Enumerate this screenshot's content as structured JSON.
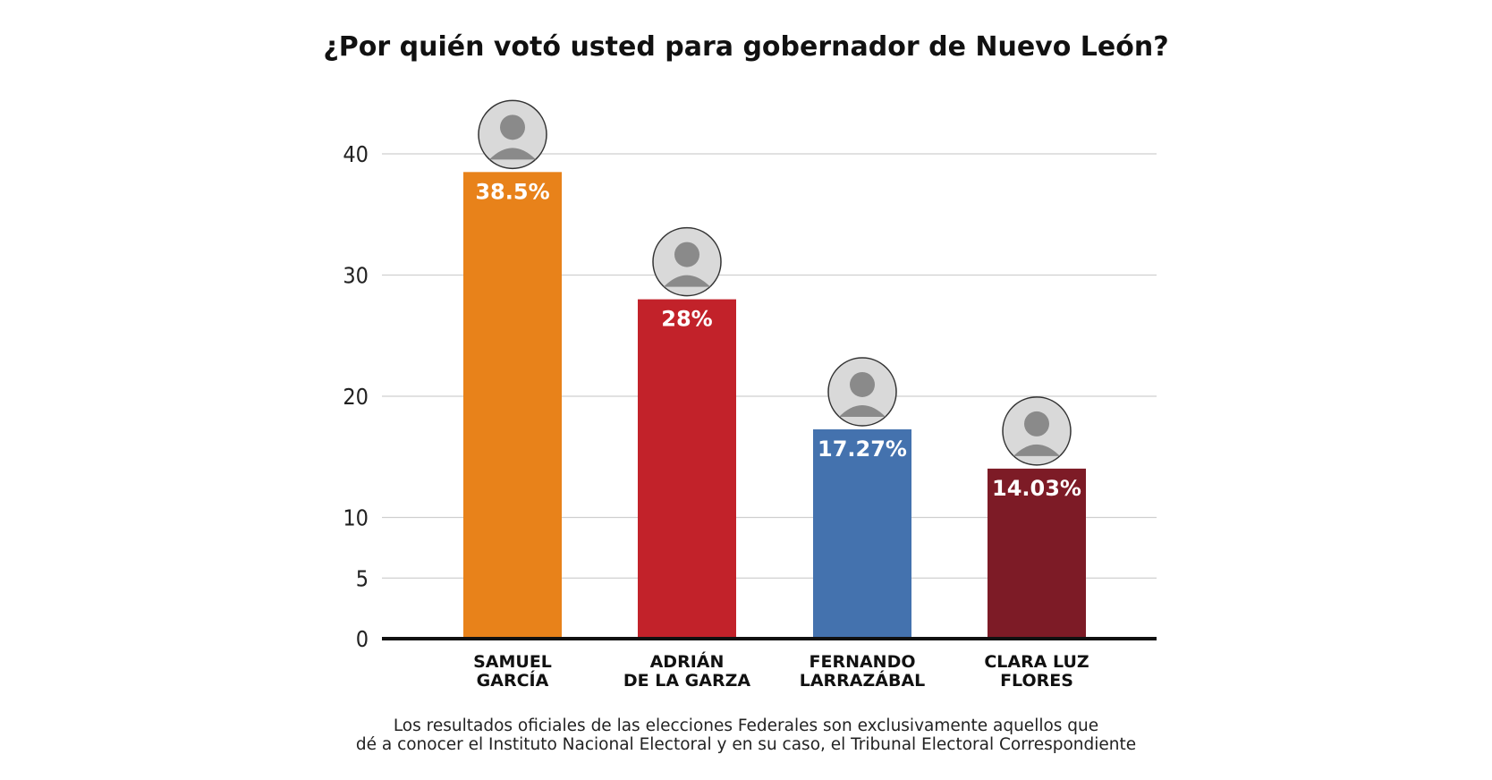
{
  "chart_data": {
    "type": "bar",
    "title": "¿Por quién votó usted para gobernador de Nuevo León?",
    "categories": [
      [
        "SAMUEL",
        "GARCÍA"
      ],
      [
        "ADRIÁN",
        "DE LA GARZA"
      ],
      [
        "FERNANDO",
        "LARRAZÁBAL"
      ],
      [
        "CLARA LUZ",
        "FLORES"
      ]
    ],
    "values": [
      38.5,
      28,
      17.27,
      14.03
    ],
    "value_labels": [
      "38.5%",
      "28%",
      "17.27%",
      "14.03%"
    ],
    "bar_colors": [
      "#e8821a",
      "#c2222a",
      "#4472ae",
      "#7d1b26"
    ],
    "yticks": [
      0,
      5,
      10,
      20,
      30,
      40
    ],
    "ylim": [
      0,
      40
    ],
    "xlabel": "",
    "ylabel": "",
    "grid": true,
    "avatar_icons": [
      "candidate-photo-icon",
      "candidate-photo-icon",
      "candidate-photo-icon",
      "candidate-photo-icon"
    ]
  },
  "footnote": {
    "line1": "Los resultados oficiales de las elecciones Federales son exclusivamente aquellos que",
    "line2": "dé a conocer el Instituto Nacional Electoral y en su caso, el Tribunal Electoral Correspondiente"
  }
}
